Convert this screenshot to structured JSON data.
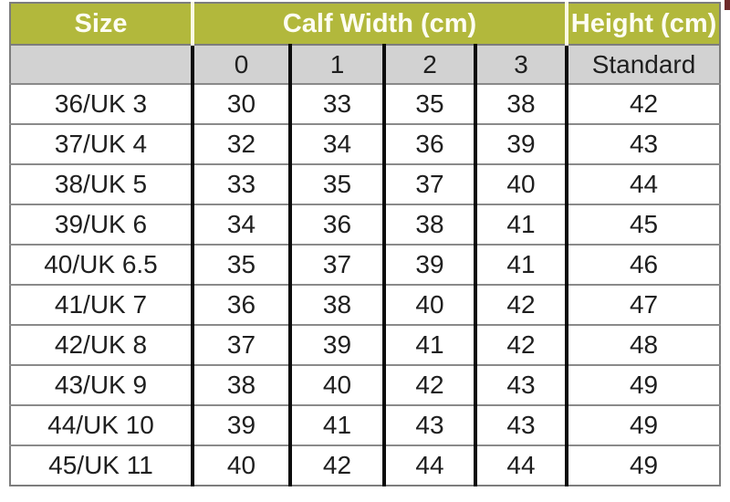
{
  "colors": {
    "header_bg": "#b2b83c",
    "header_text": "#fdfdf2",
    "header_divider": "#fbf9e4",
    "subheader_bg": "#d2d2d2",
    "body_text": "#1f1f1f",
    "vline": "#0b0b0b",
    "hline": "#8a8a8a",
    "outer_border": "#7d7d7d",
    "artifact": "#6e2b2b"
  },
  "table": {
    "header": {
      "size_label": "Size",
      "calf_width_label": "Calf Width (cm)",
      "height_label": "Height (cm)"
    },
    "subheader": {
      "size": "",
      "calf_columns": [
        "0",
        "1",
        "2",
        "3"
      ],
      "height": "Standard"
    },
    "rows": [
      {
        "size": "36/UK 3",
        "calf": [
          "30",
          "33",
          "35",
          "38"
        ],
        "height": "42"
      },
      {
        "size": "37/UK 4",
        "calf": [
          "32",
          "34",
          "36",
          "39"
        ],
        "height": "43"
      },
      {
        "size": "38/UK 5",
        "calf": [
          "33",
          "35",
          "37",
          "40"
        ],
        "height": "44"
      },
      {
        "size": "39/UK 6",
        "calf": [
          "34",
          "36",
          "38",
          "41"
        ],
        "height": "45"
      },
      {
        "size": "40/UK 6.5",
        "calf": [
          "35",
          "37",
          "39",
          "41"
        ],
        "height": "46"
      },
      {
        "size": "41/UK 7",
        "calf": [
          "36",
          "38",
          "40",
          "42"
        ],
        "height": "47"
      },
      {
        "size": "42/UK 8",
        "calf": [
          "37",
          "39",
          "41",
          "42"
        ],
        "height": "48"
      },
      {
        "size": "43/UK 9",
        "calf": [
          "38",
          "40",
          "42",
          "43"
        ],
        "height": "49"
      },
      {
        "size": "44/UK 10",
        "calf": [
          "39",
          "41",
          "43",
          "43"
        ],
        "height": "49"
      },
      {
        "size": "45/UK 11",
        "calf": [
          "40",
          "42",
          "44",
          "44"
        ],
        "height": "49"
      }
    ]
  },
  "chart_data": {
    "type": "table",
    "title": "",
    "column_groups": [
      {
        "label": "Size",
        "span": 1
      },
      {
        "label": "Calf Width (cm)",
        "span": 4
      },
      {
        "label": "Height (cm)",
        "span": 1
      }
    ],
    "columns": [
      "Size",
      "0",
      "1",
      "2",
      "3",
      "Standard"
    ],
    "rows": [
      [
        "36/UK 3",
        30,
        33,
        35,
        38,
        42
      ],
      [
        "37/UK 4",
        32,
        34,
        36,
        39,
        43
      ],
      [
        "38/UK 5",
        33,
        35,
        37,
        40,
        44
      ],
      [
        "39/UK 6",
        34,
        36,
        38,
        41,
        45
      ],
      [
        "40/UK 6.5",
        35,
        37,
        39,
        41,
        46
      ],
      [
        "41/UK 7",
        36,
        38,
        40,
        42,
        47
      ],
      [
        "42/UK 8",
        37,
        39,
        41,
        42,
        48
      ],
      [
        "43/UK 9",
        38,
        40,
        42,
        43,
        49
      ],
      [
        "44/UK 10",
        39,
        41,
        43,
        43,
        49
      ],
      [
        "45/UK 11",
        40,
        42,
        44,
        44,
        49
      ]
    ]
  }
}
